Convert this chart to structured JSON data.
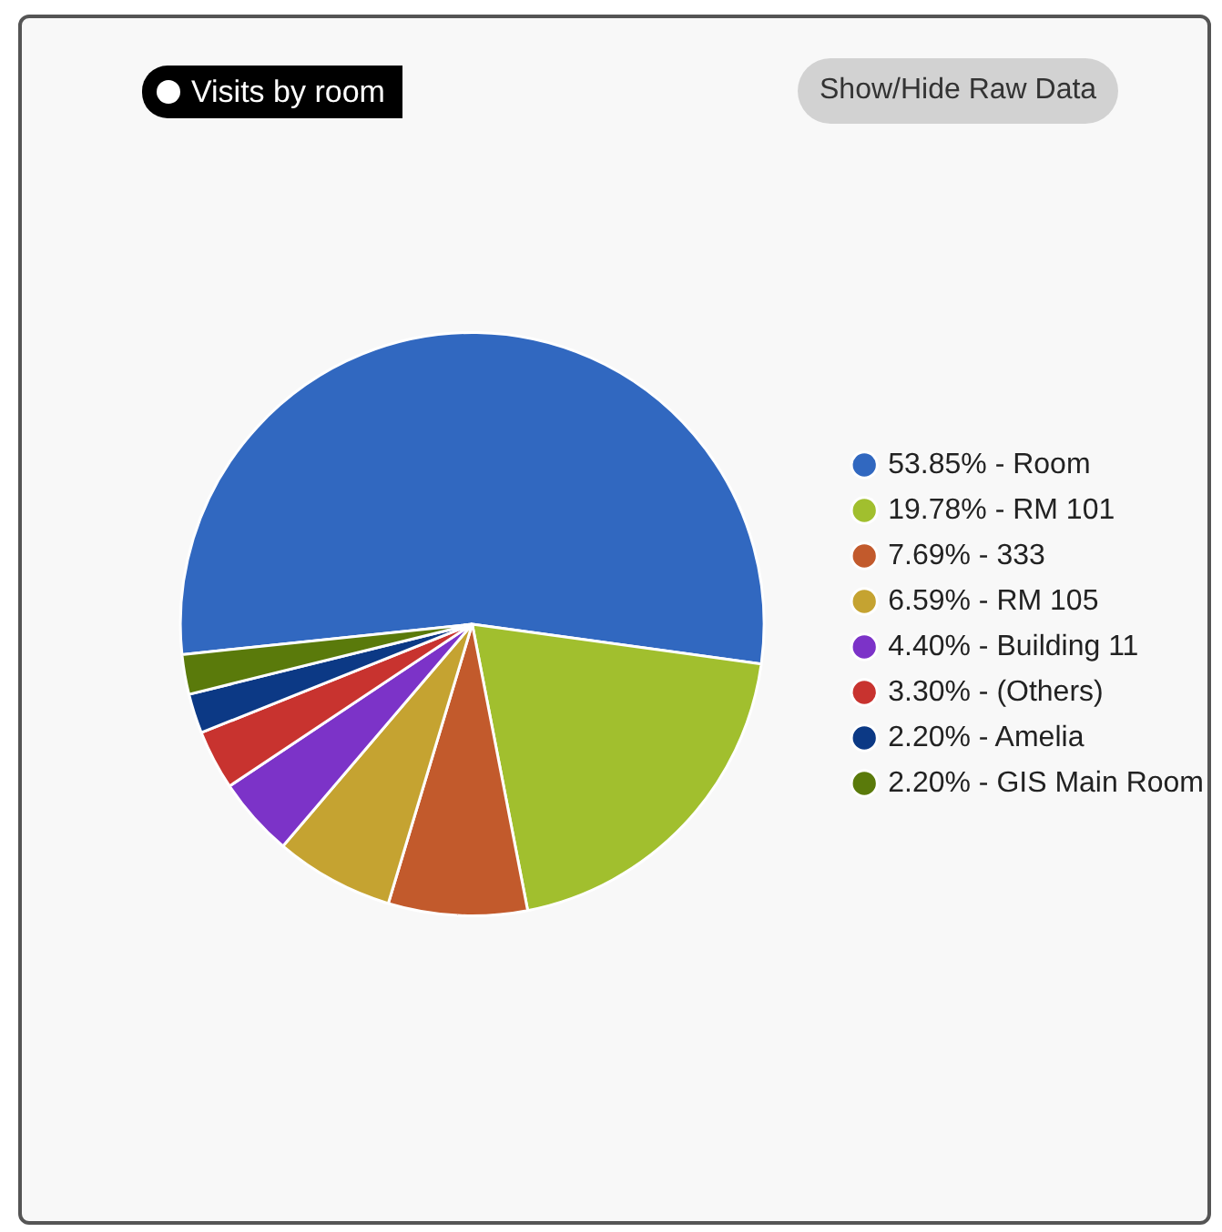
{
  "chart_data": {
    "type": "pie",
    "title": "Visits by room",
    "categories": [
      "53.85% - Room",
      "19.78% - RM 101",
      "7.69% - 333",
      "6.59% - RM 105",
      "4.40% - Building 11",
      "3.30% - (Others)",
      "2.20% - Amelia",
      "2.20% - GIS Main Room"
    ],
    "values": [
      53.85,
      19.78,
      7.69,
      6.59,
      4.4,
      3.3,
      2.2,
      2.2
    ],
    "colors": [
      "#3168c0",
      "#a1bf2e",
      "#c25a2c",
      "#c5a331",
      "#7c33c8",
      "#c8332f",
      "#0c3985",
      "#5a7a0b"
    ],
    "legend": "right",
    "annotations": [
      "Show/Hide Raw Data"
    ]
  }
}
